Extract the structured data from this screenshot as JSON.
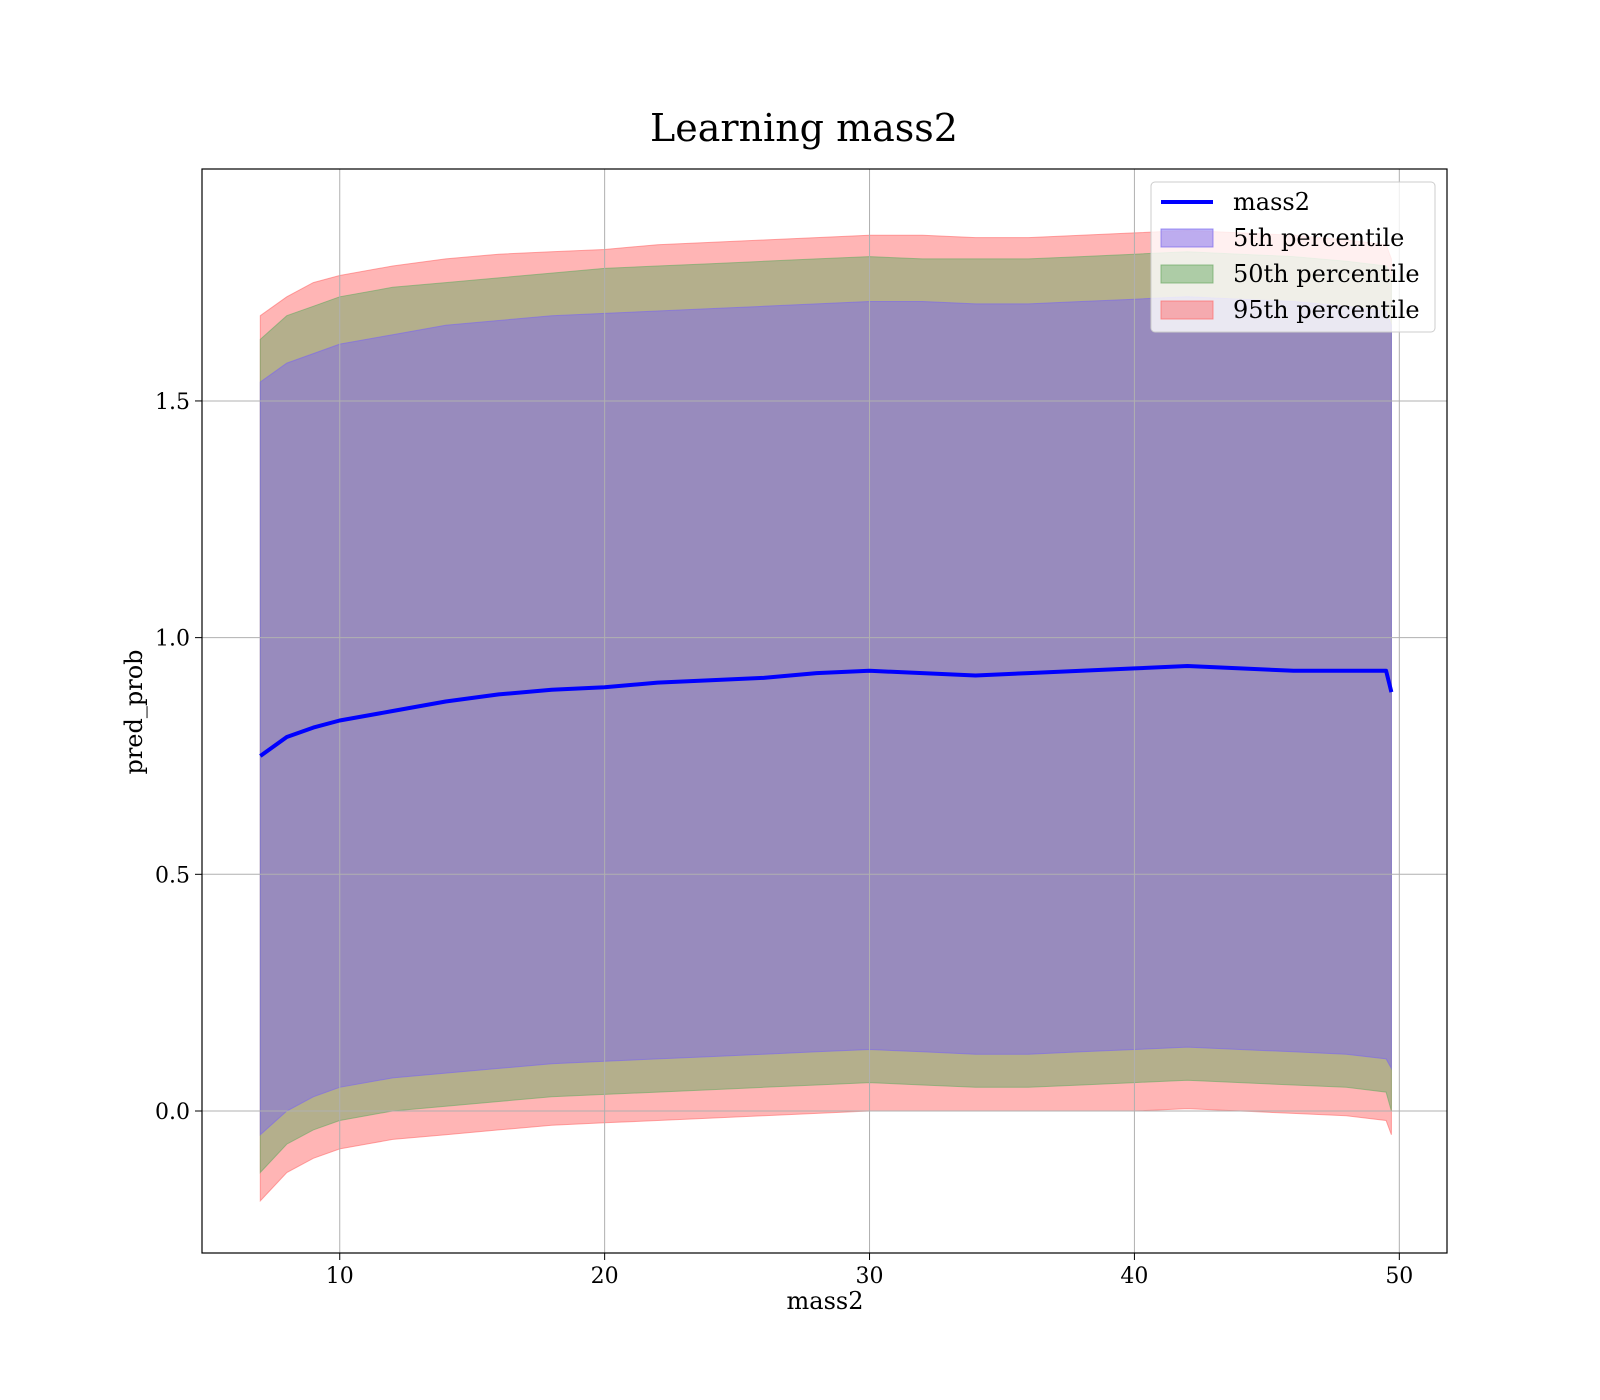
{
  "chart_data": {
    "type": "line",
    "title": "Learning mass2",
    "xlabel": "mass2",
    "ylabel": "pred_prob",
    "xlim": [
      4.8,
      51.8
    ],
    "ylim": [
      -0.3,
      1.99
    ],
    "xticks": [
      10,
      20,
      30,
      40,
      50
    ],
    "yticks": [
      0.0,
      0.5,
      1.0,
      1.5
    ],
    "xtick_labels": [
      "10",
      "20",
      "30",
      "40",
      "50"
    ],
    "ytick_labels": [
      "0.0",
      "0.5",
      "1.0",
      "1.5"
    ],
    "grid": true,
    "legend_position": "top-right",
    "x": [
      7,
      8,
      9,
      10,
      12,
      14,
      16,
      18,
      20,
      22,
      24,
      26,
      28,
      30,
      32,
      34,
      36,
      38,
      40,
      42,
      44,
      46,
      48,
      49.5,
      49.7
    ],
    "series": [
      {
        "name": "mass2",
        "kind": "line",
        "color": "#0000ff",
        "values": [
          0.75,
          0.79,
          0.81,
          0.825,
          0.845,
          0.865,
          0.88,
          0.89,
          0.895,
          0.905,
          0.91,
          0.915,
          0.925,
          0.93,
          0.925,
          0.92,
          0.925,
          0.93,
          0.935,
          0.94,
          0.935,
          0.93,
          0.93,
          0.93,
          0.885
        ]
      },
      {
        "name": "5th percentile",
        "kind": "band",
        "color": "#7b68ee",
        "lower": [
          -0.05,
          0.0,
          0.03,
          0.05,
          0.07,
          0.08,
          0.09,
          0.1,
          0.105,
          0.11,
          0.115,
          0.12,
          0.125,
          0.13,
          0.125,
          0.12,
          0.12,
          0.125,
          0.13,
          0.135,
          0.13,
          0.125,
          0.12,
          0.11,
          0.09
        ],
        "upper": [
          1.54,
          1.58,
          1.6,
          1.62,
          1.64,
          1.66,
          1.67,
          1.68,
          1.685,
          1.69,
          1.695,
          1.7,
          1.705,
          1.71,
          1.71,
          1.705,
          1.705,
          1.71,
          1.715,
          1.72,
          1.715,
          1.71,
          1.7,
          1.69,
          1.66
        ]
      },
      {
        "name": "50th percentile",
        "kind": "band",
        "color": "#6aaa64",
        "lower": [
          -0.13,
          -0.07,
          -0.04,
          -0.02,
          0.0,
          0.01,
          0.02,
          0.03,
          0.035,
          0.04,
          0.045,
          0.05,
          0.055,
          0.06,
          0.055,
          0.05,
          0.05,
          0.055,
          0.06,
          0.065,
          0.06,
          0.055,
          0.05,
          0.04,
          0.0
        ],
        "upper": [
          1.63,
          1.68,
          1.7,
          1.72,
          1.74,
          1.75,
          1.76,
          1.77,
          1.78,
          1.785,
          1.79,
          1.795,
          1.8,
          1.805,
          1.8,
          1.8,
          1.8,
          1.805,
          1.81,
          1.815,
          1.81,
          1.805,
          1.795,
          1.785,
          1.76
        ]
      },
      {
        "name": "95th percentile",
        "kind": "band",
        "color": "#ff6b6b",
        "lower": [
          -0.19,
          -0.13,
          -0.1,
          -0.08,
          -0.06,
          -0.05,
          -0.04,
          -0.03,
          -0.025,
          -0.02,
          -0.015,
          -0.01,
          -0.005,
          0.0,
          0.0,
          0.0,
          0.0,
          0.0,
          0.0,
          0.005,
          0.0,
          -0.005,
          -0.01,
          -0.02,
          -0.05
        ],
        "upper": [
          1.68,
          1.72,
          1.75,
          1.765,
          1.785,
          1.8,
          1.81,
          1.815,
          1.82,
          1.83,
          1.835,
          1.84,
          1.845,
          1.85,
          1.85,
          1.845,
          1.845,
          1.85,
          1.855,
          1.86,
          1.855,
          1.85,
          1.84,
          1.83,
          1.8
        ]
      }
    ]
  }
}
